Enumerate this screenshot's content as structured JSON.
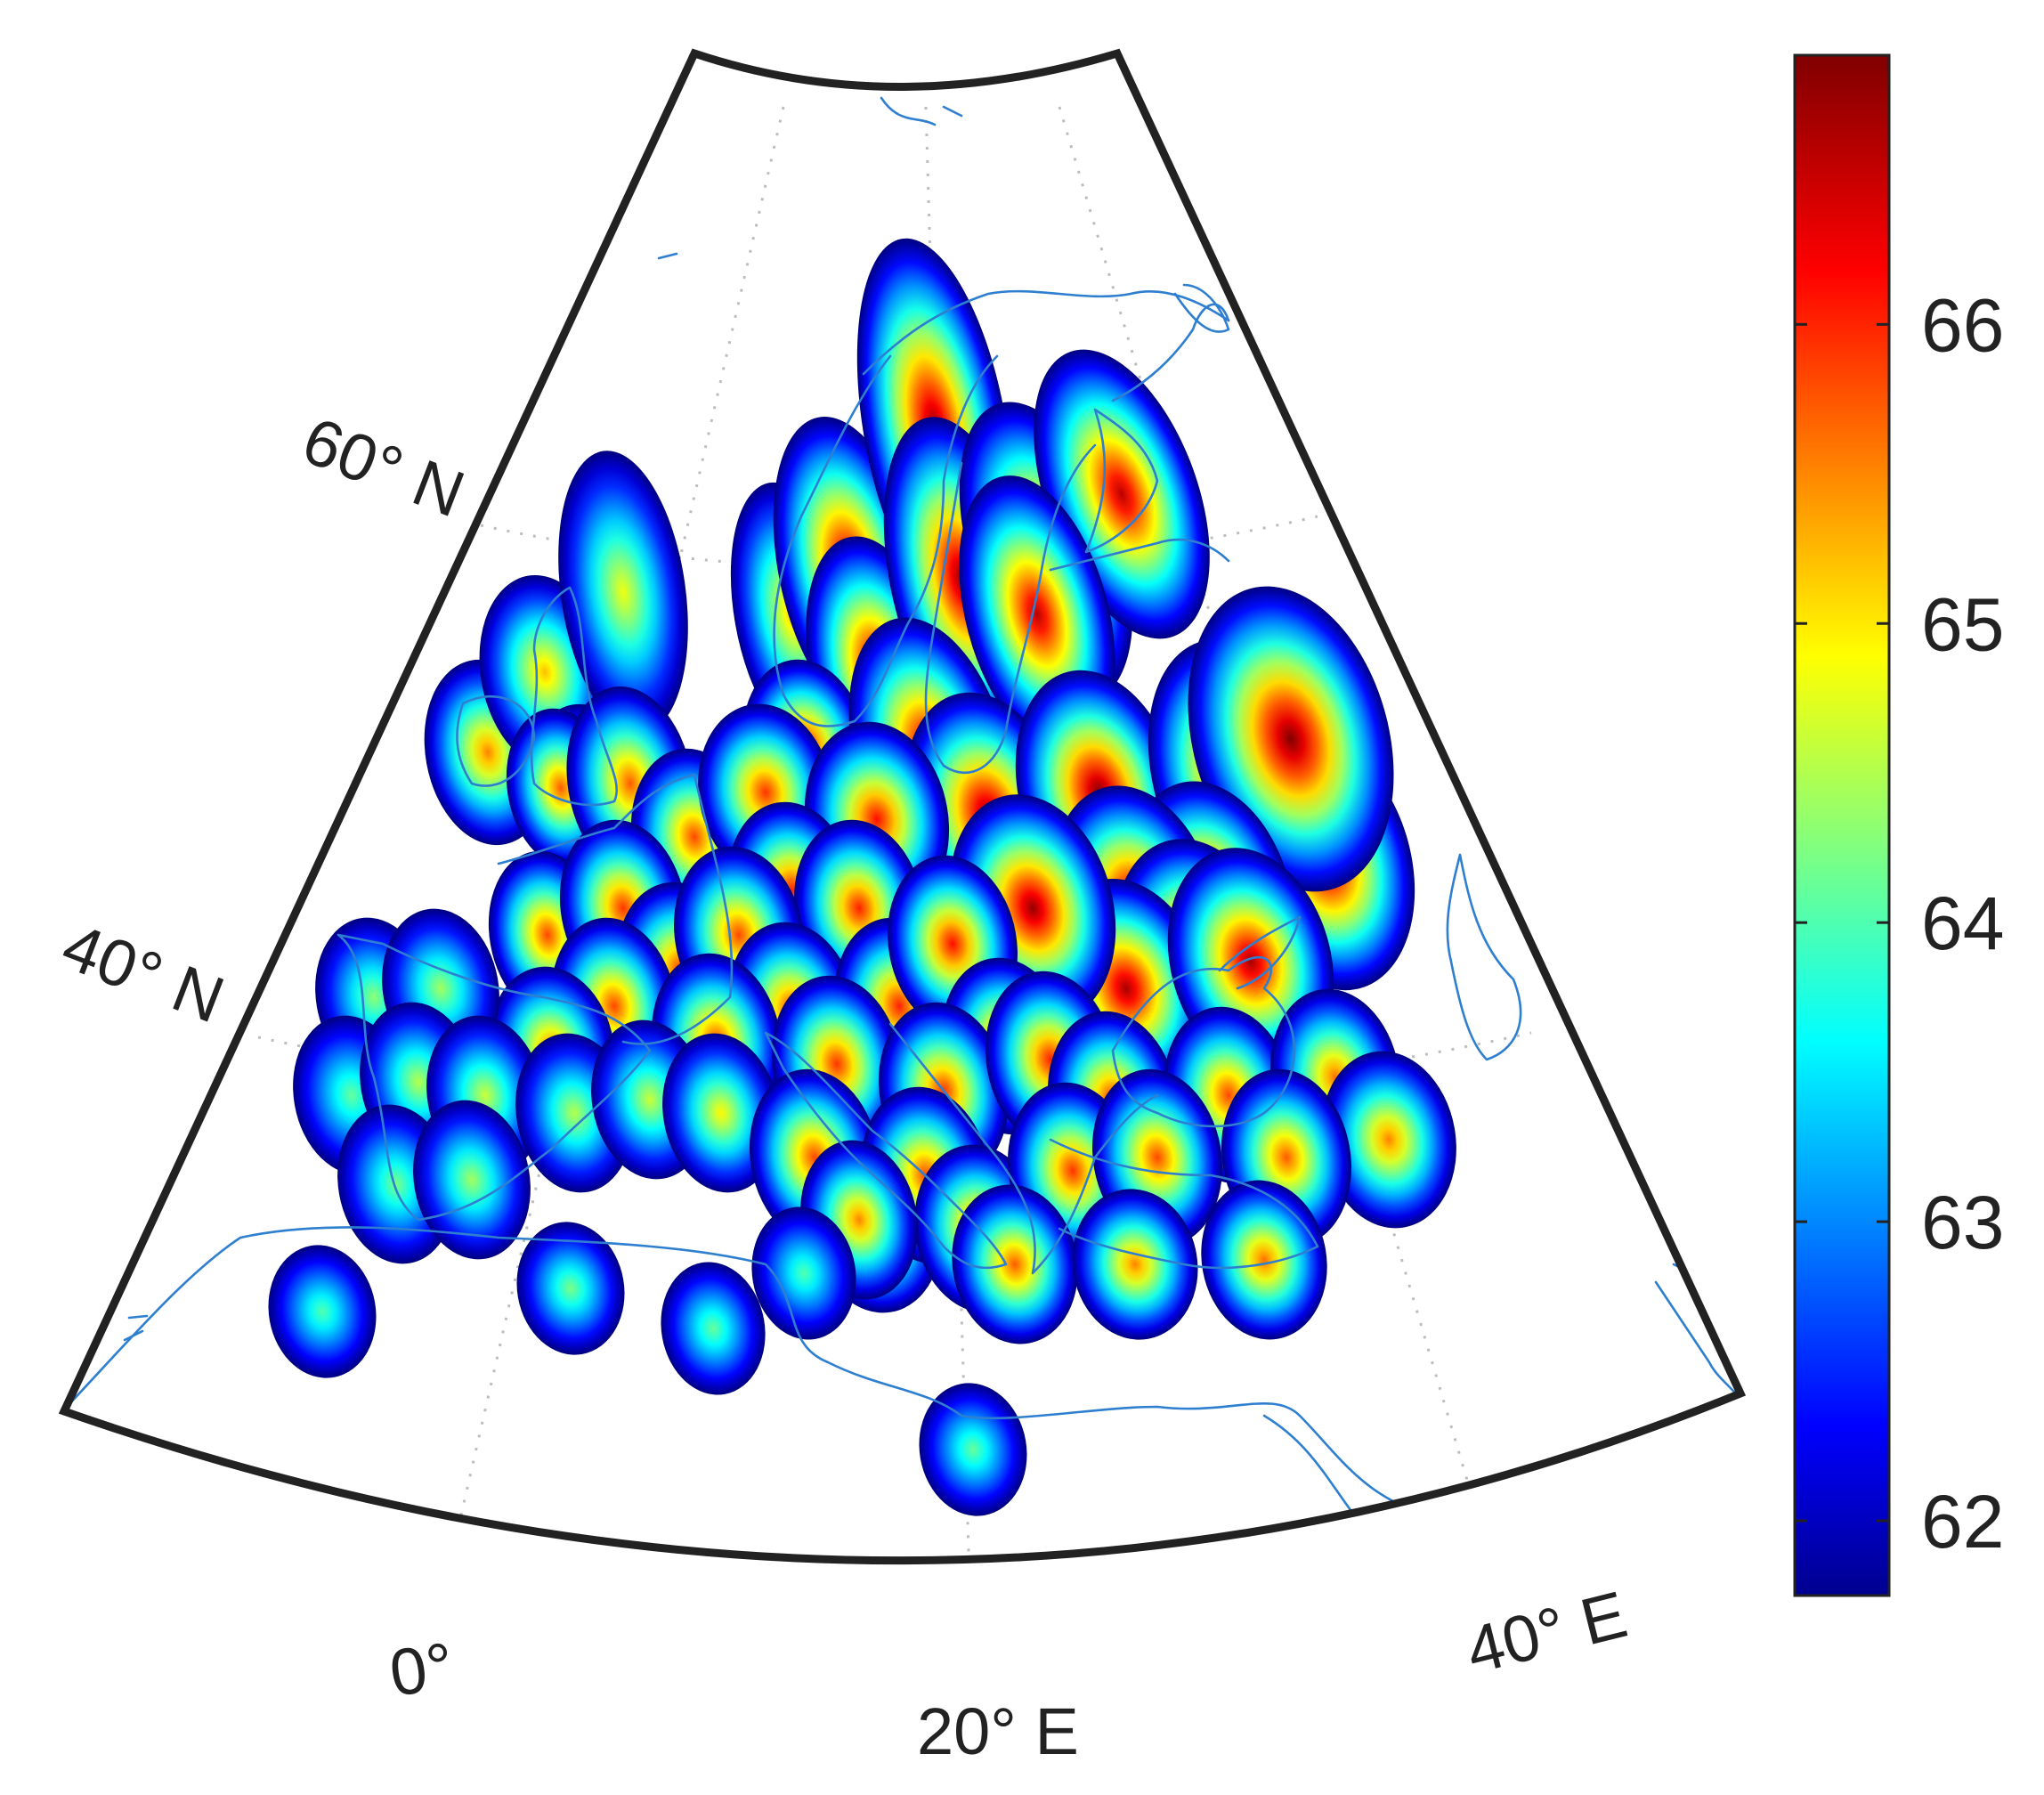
{
  "map": {
    "projection": "conic sector",
    "latitude_labels": [
      "60° N",
      "40° N"
    ],
    "longitude_labels": [
      "0°",
      "20° E",
      "40° E"
    ],
    "coastline_color": "#2f7fd0",
    "frame_color": "#222222",
    "graticule_style": "dotted"
  },
  "colorbar": {
    "colormap": "jet",
    "range": [
      61.75,
      66.9
    ],
    "ticks": [
      "62",
      "63",
      "64",
      "65",
      "66"
    ],
    "tick_values": [
      62,
      63,
      64,
      65,
      66
    ]
  },
  "cells": [
    {
      "id": "ireland",
      "peak": 65.6
    },
    {
      "id": "north-uk",
      "peak": 65.3
    },
    {
      "id": "shetland",
      "peak": 64.9
    },
    {
      "id": "scotland",
      "peak": 65.5
    },
    {
      "id": "wales",
      "peak": 65.8
    },
    {
      "id": "east-england",
      "peak": 65.8
    },
    {
      "id": "norway-w",
      "peak": 65.3
    },
    {
      "id": "norway-s",
      "peak": 66.7
    },
    {
      "id": "norway-n",
      "peak": 66.8
    },
    {
      "id": "sweden-s",
      "peak": 66.6
    },
    {
      "id": "gulf-bothnia",
      "peak": 66.8
    },
    {
      "id": "finland-w",
      "peak": 66.5
    },
    {
      "id": "finland-e",
      "peak": 66.6
    },
    {
      "id": "sweden-e",
      "peak": 66.6
    },
    {
      "id": "denmark",
      "peak": 66.3
    },
    {
      "id": "baltic",
      "peak": 66.7
    },
    {
      "id": "baltics",
      "peak": 66.8
    },
    {
      "id": "russia-w1",
      "peak": 66.9
    },
    {
      "id": "russia-w2",
      "peak": 66.8
    },
    {
      "id": "russia-w3",
      "peak": 66.7
    },
    {
      "id": "russia-w4",
      "peak": 66.9
    },
    {
      "id": "russia-w5",
      "peak": 66.8
    },
    {
      "id": "ukraine-n",
      "peak": 66.8
    },
    {
      "id": "ukraine-c",
      "peak": 66.8
    },
    {
      "id": "ukraine-s",
      "peak": 66.7
    },
    {
      "id": "crimea",
      "peak": 66.7
    },
    {
      "id": "belarus",
      "peak": 66.8
    },
    {
      "id": "benelux",
      "peak": 65.9
    },
    {
      "id": "n-germany",
      "peak": 66.0
    },
    {
      "id": "poland-n",
      "peak": 66.2
    },
    {
      "id": "france-w",
      "peak": 65.9
    },
    {
      "id": "france-n",
      "peak": 66.0
    },
    {
      "id": "germany",
      "peak": 66.0
    },
    {
      "id": "germany-e",
      "peak": 66.1
    },
    {
      "id": "poland",
      "peak": 66.1
    },
    {
      "id": "france-c",
      "peak": 65.9
    },
    {
      "id": "switzerland",
      "peak": 65.9
    },
    {
      "id": "austria",
      "peak": 66.0
    },
    {
      "id": "hungary",
      "peak": 66.1
    },
    {
      "id": "romania-n",
      "peak": 66.2
    },
    {
      "id": "romania",
      "peak": 66.1
    },
    {
      "id": "france-s",
      "peak": 65.7
    },
    {
      "id": "italy-n",
      "peak": 65.9
    },
    {
      "id": "croatia",
      "peak": 66.0
    },
    {
      "id": "serbia",
      "peak": 66.0
    },
    {
      "id": "bulgaria",
      "peak": 66.1
    },
    {
      "id": "black-sea-w",
      "peak": 66.0
    },
    {
      "id": "turkey-n",
      "peak": 65.9
    },
    {
      "id": "georgia",
      "peak": 65.7
    },
    {
      "id": "caucasus",
      "peak": 65.6
    },
    {
      "id": "galicia",
      "peak": 64.4
    },
    {
      "id": "cantabria",
      "peak": 64.5
    },
    {
      "id": "portugal",
      "peak": 64.2
    },
    {
      "id": "spain-c",
      "peak": 64.6
    },
    {
      "id": "catalonia",
      "peak": 64.7
    },
    {
      "id": "balearic",
      "peak": 64.6
    },
    {
      "id": "sardinia",
      "peak": 64.7
    },
    {
      "id": "corsica",
      "peak": 65.0
    },
    {
      "id": "andalusia",
      "peak": 64.3
    },
    {
      "id": "valencia",
      "peak": 64.5
    },
    {
      "id": "italy-c",
      "peak": 65.9
    },
    {
      "id": "italy-s",
      "peak": 65.8
    },
    {
      "id": "albania",
      "peak": 65.9
    },
    {
      "id": "greece",
      "peak": 65.9
    },
    {
      "id": "aegean",
      "peak": 66.0
    },
    {
      "id": "turkey-w",
      "peak": 65.9
    },
    {
      "id": "turkey-c",
      "peak": 65.8
    },
    {
      "id": "sicily",
      "peak": 65.6
    },
    {
      "id": "crete",
      "peak": 65.8
    },
    {
      "id": "anatolia-s",
      "peak": 65.6
    },
    {
      "id": "cyprus",
      "peak": 65.7
    },
    {
      "id": "morocco",
      "peak": 64.1
    },
    {
      "id": "algeria",
      "peak": 64.3
    },
    {
      "id": "tunisia",
      "peak": 64.2
    },
    {
      "id": "libya",
      "peak": 64.1
    },
    {
      "id": "egypt",
      "peak": 64.2
    }
  ]
}
